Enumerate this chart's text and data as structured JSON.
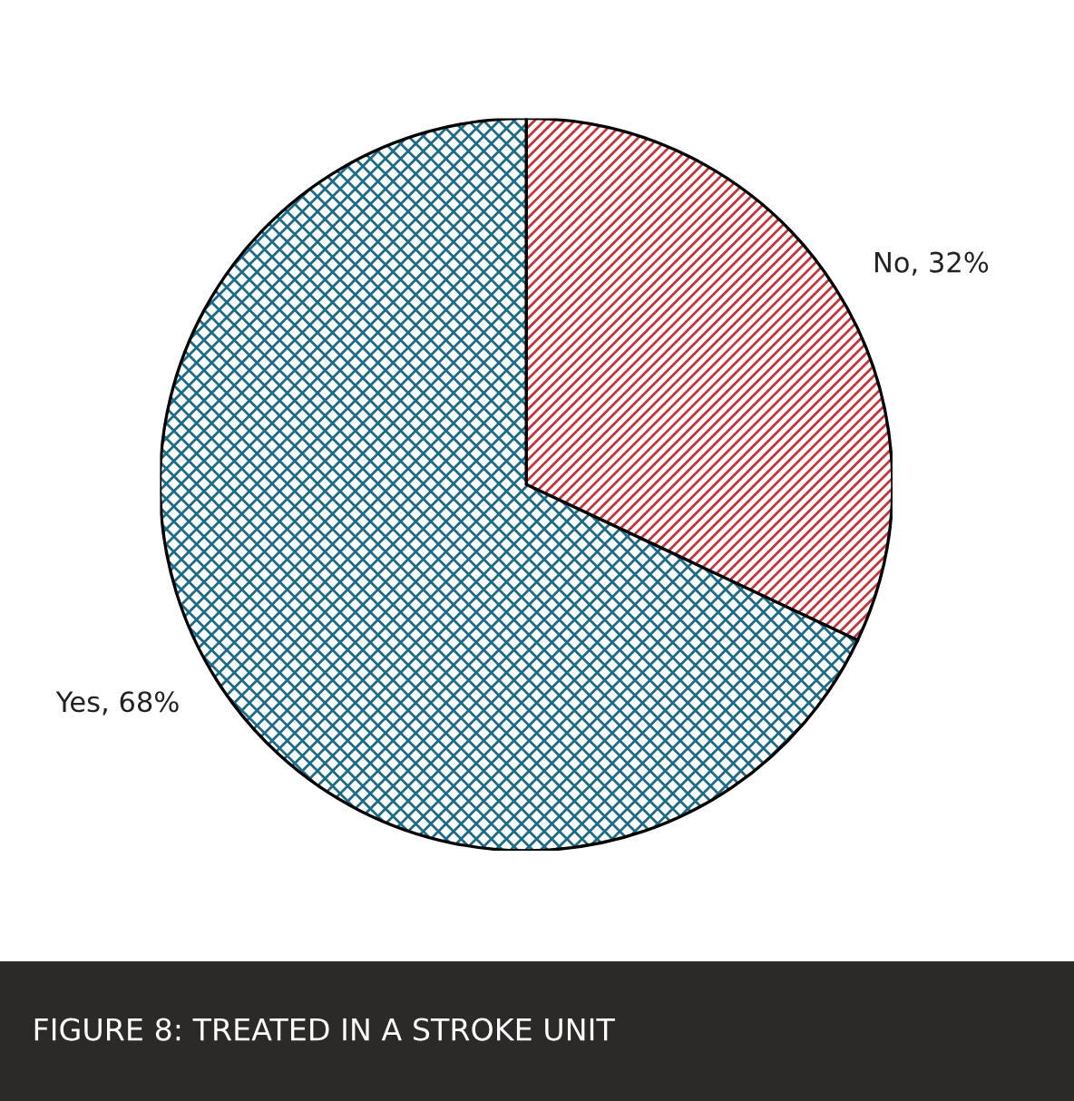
{
  "chart_data": {
    "type": "pie",
    "title": "FIGURE 8: TREATED IN A STROKE UNIT",
    "categories": [
      "No",
      "Yes"
    ],
    "values": [
      32,
      68
    ],
    "colors": [
      "#c8333a",
      "#1d6b86"
    ],
    "value_labels": [
      "32%",
      "68%"
    ],
    "legend": false
  }
}
